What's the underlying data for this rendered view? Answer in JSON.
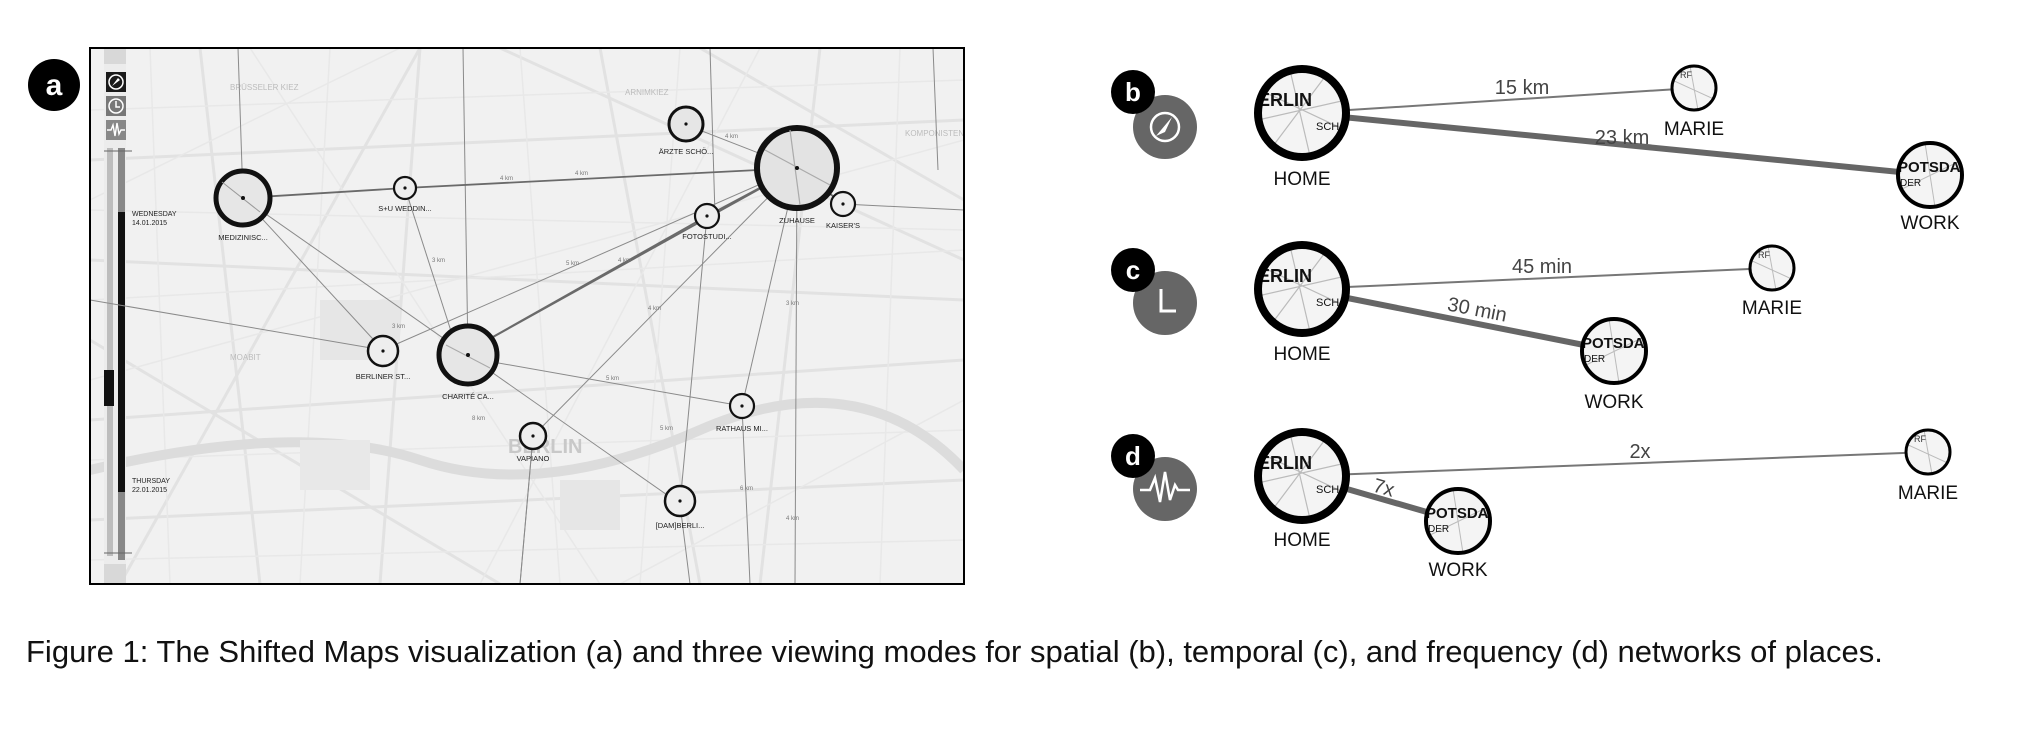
{
  "panels": {
    "a": {
      "badge": "a",
      "dates": {
        "top_day": "WEDNESDAY",
        "top_date": "14.01.2015",
        "bottom_day": "THURSDAY",
        "bottom_date": "22.01.2015"
      },
      "district_labels": [
        "BRÜSSELER KIEZ",
        "ARNIMKIEZ",
        "KOMPONISTEN",
        "MOABIT",
        "BERLIN"
      ],
      "places": {
        "medizin": "MEDIZINISC...",
        "sudwedding": "S+U WEDDIN...",
        "aerzte": "ÄRZTE SCHÖ...",
        "zuhause": "ZUHAUSE",
        "kaisers": "KAISER'S",
        "fotostudio": "FOTOSTUDI...",
        "berlinerst": "BERLINER ST...",
        "charite": "CHARITÉ CA...",
        "vapiano": "VAPIANO",
        "rathaus": "RATHAUS MI...",
        "dam": "[DAM]BERLI..."
      },
      "edge_labels": [
        "4 km",
        "4 km",
        "3 km",
        "5 km",
        "4 km",
        "4 km",
        "4 km",
        "3 km",
        "5 km",
        "3 km",
        "6 km",
        "4 km",
        "8 km",
        "5 km"
      ]
    },
    "b": {
      "badge": "b",
      "mode_icon": "compass-icon",
      "home_label": "HOME",
      "home_map_text": [
        "ERLIN",
        "SCH"
      ],
      "marie_label": "MARIE",
      "marie_map_text": "RF",
      "work_label": "WORK",
      "work_map_text": [
        "POTSDA",
        "DER"
      ],
      "edge_marie": "15 km",
      "edge_work": "23 km"
    },
    "c": {
      "badge": "c",
      "mode_icon": "clock-icon",
      "home_label": "HOME",
      "home_map_text": [
        "ERLIN",
        "SCH"
      ],
      "marie_label": "MARIE",
      "marie_map_text": "RF",
      "work_label": "WORK",
      "work_map_text": [
        "POTSDA",
        "DER"
      ],
      "edge_marie": "45 min",
      "edge_work": "30 min"
    },
    "d": {
      "badge": "d",
      "mode_icon": "pulse-icon",
      "home_label": "HOME",
      "home_map_text": [
        "ERLIN",
        "SCH"
      ],
      "marie_label": "MARIE",
      "marie_map_text": "RF",
      "work_label": "WORK",
      "work_map_text": [
        "POTSDA",
        "DER"
      ],
      "edge_marie": "2x",
      "edge_work": "7x"
    }
  },
  "caption": "Figure 1: The Shifted Maps visualization (a) and three viewing modes for spatial (b), temporal (c), and frequency (d) networks of places."
}
